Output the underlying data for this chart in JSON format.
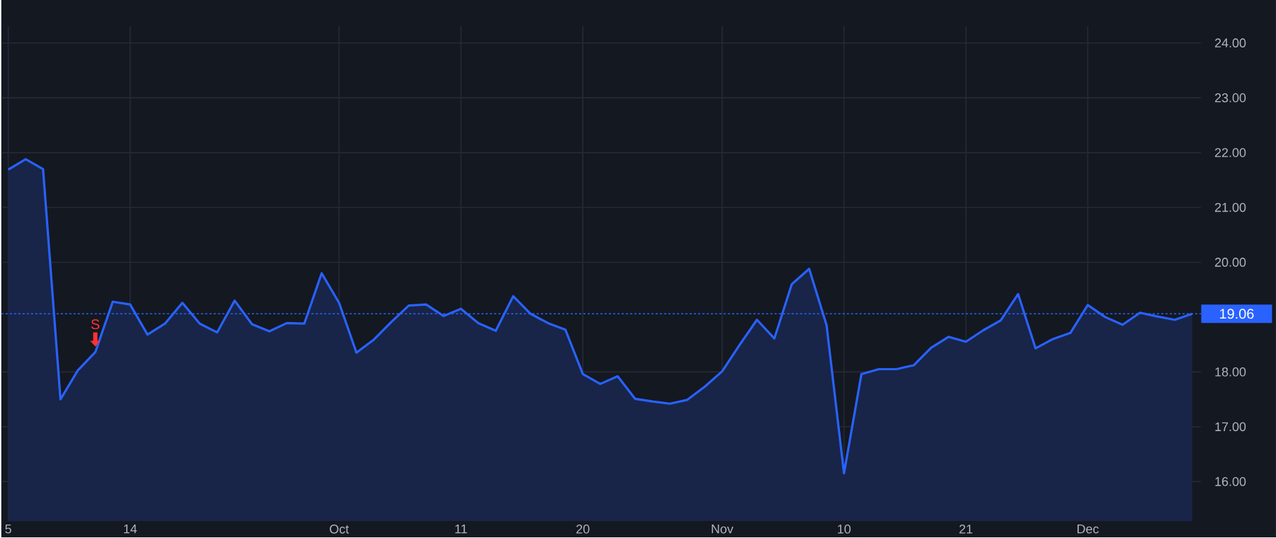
{
  "chart_data": {
    "type": "area",
    "categories": [
      "5",
      null,
      null,
      null,
      null,
      null,
      null,
      "14",
      null,
      null,
      null,
      null,
      null,
      null,
      null,
      null,
      null,
      null,
      null,
      "Oct",
      null,
      null,
      null,
      null,
      null,
      null,
      "11",
      null,
      null,
      null,
      null,
      null,
      null,
      "20",
      null,
      null,
      null,
      null,
      null,
      null,
      null,
      "Nov",
      null,
      null,
      null,
      null,
      null,
      null,
      "10",
      null,
      null,
      null,
      null,
      null,
      null,
      "21",
      null,
      null,
      null,
      null,
      null,
      null,
      "Dec",
      null,
      null,
      null,
      null,
      null,
      null
    ],
    "series": [
      {
        "color": "#2962ff",
        "values": [
          21.69,
          21.88,
          21.7,
          17.5,
          18.03,
          18.36,
          19.28,
          19.23,
          18.68,
          18.88,
          19.26,
          18.88,
          18.72,
          19.3,
          18.87,
          18.74,
          18.89,
          18.88,
          19.8,
          19.26,
          18.35,
          18.59,
          18.91,
          19.21,
          19.23,
          19.02,
          19.15,
          18.89,
          18.75,
          19.38,
          19.06,
          18.89,
          18.77,
          17.96,
          17.78,
          17.92,
          17.51,
          17.46,
          17.42,
          17.49,
          17.73,
          18.01,
          18.49,
          18.95,
          18.61,
          19.6,
          19.88,
          18.85,
          16.15,
          17.96,
          18.05,
          18.05,
          18.12,
          18.44,
          18.64,
          18.55,
          18.76,
          18.94,
          19.42,
          18.43,
          18.6,
          18.71,
          19.22,
          19.0,
          18.86,
          19.08,
          19.01,
          18.95,
          19.06
        ]
      }
    ],
    "ylim": [
      15.28,
      24.31
    ],
    "yticks": [
      {
        "value": 16,
        "label": "16.00"
      },
      {
        "value": 17,
        "label": "17.00"
      },
      {
        "value": 18,
        "label": "18.00"
      },
      {
        "value": 20,
        "label": "20.00"
      },
      {
        "value": 21,
        "label": "21.00"
      },
      {
        "value": 22,
        "label": "22.00"
      },
      {
        "value": 23,
        "label": "23.00"
      },
      {
        "value": 24,
        "label": "24.00"
      }
    ],
    "grid": true,
    "ref_lines": [
      {
        "axis": "y",
        "value": 19.06,
        "label": "19.06",
        "color": "#2962ff",
        "line_style": "dotted"
      }
    ],
    "annotations": [
      {
        "text": "S",
        "y": 18.36
      }
    ]
  }
}
